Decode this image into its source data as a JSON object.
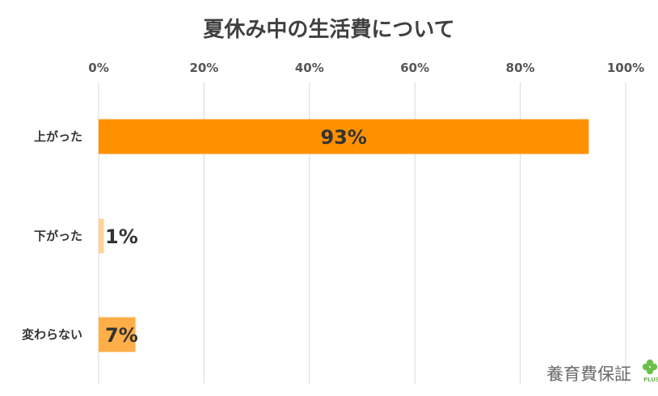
{
  "chart_data": {
    "type": "bar",
    "orientation": "horizontal",
    "title": "夏休み中の生活費について",
    "categories": [
      "上がった",
      "下がった",
      "変わらない"
    ],
    "values": [
      93,
      1,
      7
    ],
    "value_labels": [
      "93%",
      "1%",
      "7%"
    ],
    "bar_colors": [
      "#ff9100",
      "#ffd29a",
      "#ffae48"
    ],
    "xlim": [
      0,
      100
    ],
    "xticks": [
      "0%",
      "20%",
      "40%",
      "60%",
      "80%",
      "100%"
    ],
    "xtick_values": [
      0,
      20,
      40,
      60,
      80,
      100
    ],
    "x_axis_position": "top",
    "grid": true,
    "legend": "none"
  },
  "logo": {
    "text": "養育費保証",
    "sub": "PLUS",
    "icon": "clover-icon",
    "icon_color": "#6cc04a"
  }
}
